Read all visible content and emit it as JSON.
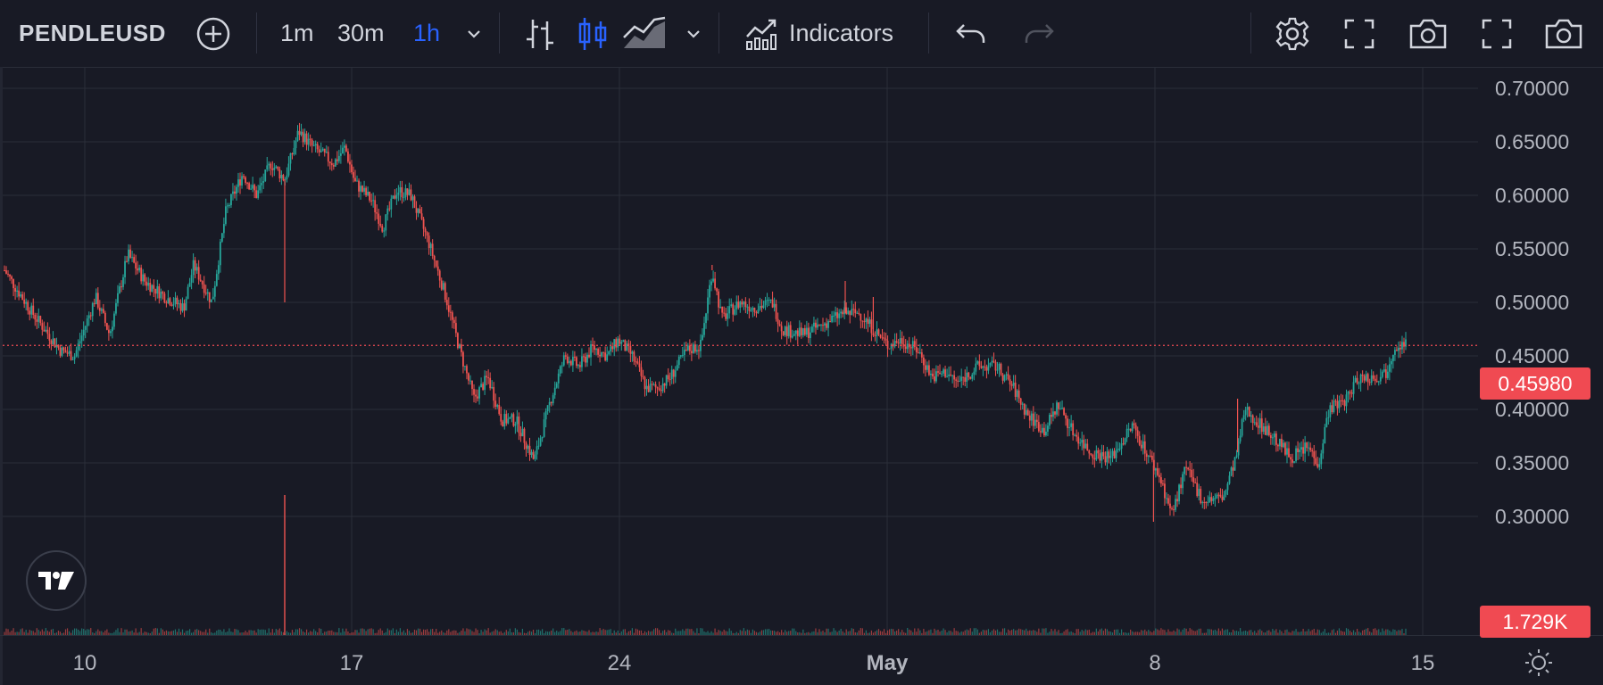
{
  "toolbar": {
    "symbol": "PENDLEUSD",
    "intervals": [
      "1m",
      "30m",
      "1h"
    ],
    "active_interval": "1h",
    "indicators_label": "Indicators",
    "icons": {
      "add": "plus-circle-icon",
      "interval_dropdown": "chevron-down-icon",
      "bar_style": "bars-icon",
      "candle_style": "candles-icon",
      "area_style": "area-icon",
      "style_dropdown": "chevron-down-icon",
      "indicators": "indicators-icon",
      "undo": "undo-icon",
      "redo": "redo-icon",
      "settings": "gear-icon",
      "fullscreen": "fullscreen-icon",
      "snapshot": "camera-icon"
    },
    "accent_color": "#2962ff"
  },
  "price_badge": "0.45980",
  "volume_badge": "1.729K",
  "colors": {
    "background": "#181a25",
    "up": "#26a69a",
    "down": "#ef5350",
    "badge": "#f04a52",
    "grid": "#2a2e39"
  },
  "chart_data": {
    "type": "candlestick",
    "symbol": "PENDLEUSD",
    "interval": "1h",
    "ylim": [
      0.28,
      0.705
    ],
    "y_ticks": [
      "0.70000",
      "0.65000",
      "0.60000",
      "0.55000",
      "0.50000",
      "0.45000",
      "0.40000",
      "0.35000",
      "0.30000"
    ],
    "y_tick_values": [
      0.7,
      0.65,
      0.6,
      0.55,
      0.5,
      0.45,
      0.4,
      0.35,
      0.3
    ],
    "x_ticks": [
      "10",
      "17",
      "24",
      "May",
      "8",
      "15"
    ],
    "last_price": 0.4598,
    "last_volume": "1.729K",
    "grid": true,
    "close_path": [
      [
        0,
        0.53
      ],
      [
        0.02,
        0.49
      ],
      [
        0.04,
        0.455
      ],
      [
        0.05,
        0.45
      ],
      [
        0.065,
        0.505
      ],
      [
        0.075,
        0.47
      ],
      [
        0.088,
        0.545
      ],
      [
        0.1,
        0.52
      ],
      [
        0.115,
        0.505
      ],
      [
        0.128,
        0.495
      ],
      [
        0.135,
        0.535
      ],
      [
        0.148,
        0.5
      ],
      [
        0.158,
        0.585
      ],
      [
        0.17,
        0.62
      ],
      [
        0.18,
        0.6
      ],
      [
        0.19,
        0.63
      ],
      [
        0.2,
        0.615
      ],
      [
        0.21,
        0.66
      ],
      [
        0.22,
        0.645
      ],
      [
        0.235,
        0.63
      ],
      [
        0.243,
        0.645
      ],
      [
        0.25,
        0.612
      ],
      [
        0.262,
        0.595
      ],
      [
        0.27,
        0.57
      ],
      [
        0.28,
        0.605
      ],
      [
        0.29,
        0.6
      ],
      [
        0.303,
        0.555
      ],
      [
        0.315,
        0.505
      ],
      [
        0.325,
        0.455
      ],
      [
        0.335,
        0.41
      ],
      [
        0.345,
        0.43
      ],
      [
        0.355,
        0.39
      ],
      [
        0.365,
        0.39
      ],
      [
        0.378,
        0.352
      ],
      [
        0.39,
        0.41
      ],
      [
        0.4,
        0.45
      ],
      [
        0.41,
        0.44
      ],
      [
        0.42,
        0.458
      ],
      [
        0.43,
        0.45
      ],
      [
        0.438,
        0.465
      ],
      [
        0.448,
        0.45
      ],
      [
        0.458,
        0.42
      ],
      [
        0.466,
        0.42
      ],
      [
        0.475,
        0.43
      ],
      [
        0.487,
        0.455
      ],
      [
        0.497,
        0.46
      ],
      [
        0.505,
        0.53
      ],
      [
        0.512,
        0.485
      ],
      [
        0.525,
        0.5
      ],
      [
        0.535,
        0.495
      ],
      [
        0.548,
        0.5
      ],
      [
        0.555,
        0.475
      ],
      [
        0.57,
        0.47
      ],
      [
        0.585,
        0.48
      ],
      [
        0.598,
        0.49
      ],
      [
        0.61,
        0.49
      ],
      [
        0.62,
        0.475
      ],
      [
        0.63,
        0.46
      ],
      [
        0.64,
        0.465
      ],
      [
        0.652,
        0.455
      ],
      [
        0.662,
        0.43
      ],
      [
        0.672,
        0.435
      ],
      [
        0.68,
        0.425
      ],
      [
        0.695,
        0.44
      ],
      [
        0.708,
        0.44
      ],
      [
        0.72,
        0.42
      ],
      [
        0.73,
        0.395
      ],
      [
        0.742,
        0.38
      ],
      [
        0.752,
        0.405
      ],
      [
        0.762,
        0.38
      ],
      [
        0.775,
        0.36
      ],
      [
        0.79,
        0.355
      ],
      [
        0.805,
        0.385
      ],
      [
        0.815,
        0.36
      ],
      [
        0.825,
        0.335
      ],
      [
        0.833,
        0.302
      ],
      [
        0.843,
        0.345
      ],
      [
        0.855,
        0.315
      ],
      [
        0.87,
        0.318
      ],
      [
        0.88,
        0.36
      ],
      [
        0.885,
        0.4
      ],
      [
        0.893,
        0.39
      ],
      [
        0.905,
        0.375
      ],
      [
        0.918,
        0.355
      ],
      [
        0.93,
        0.365
      ],
      [
        0.938,
        0.35
      ],
      [
        0.945,
        0.4
      ],
      [
        0.958,
        0.41
      ],
      [
        0.966,
        0.43
      ],
      [
        0.978,
        0.43
      ],
      [
        0.986,
        0.435
      ],
      [
        0.992,
        0.46
      ],
      [
        1.0,
        0.462
      ]
    ],
    "spikes": [
      {
        "x": 0.2,
        "low": 0.5
      },
      {
        "x": 0.505,
        "high": 0.535
      },
      {
        "x": 0.6,
        "high": 0.52
      },
      {
        "x": 0.62,
        "high": 0.505
      },
      {
        "x": 0.82,
        "low": 0.295
      },
      {
        "x": 0.88,
        "high": 0.41
      }
    ],
    "volume_spike": {
      "x": 0.2,
      "value": "max"
    }
  }
}
